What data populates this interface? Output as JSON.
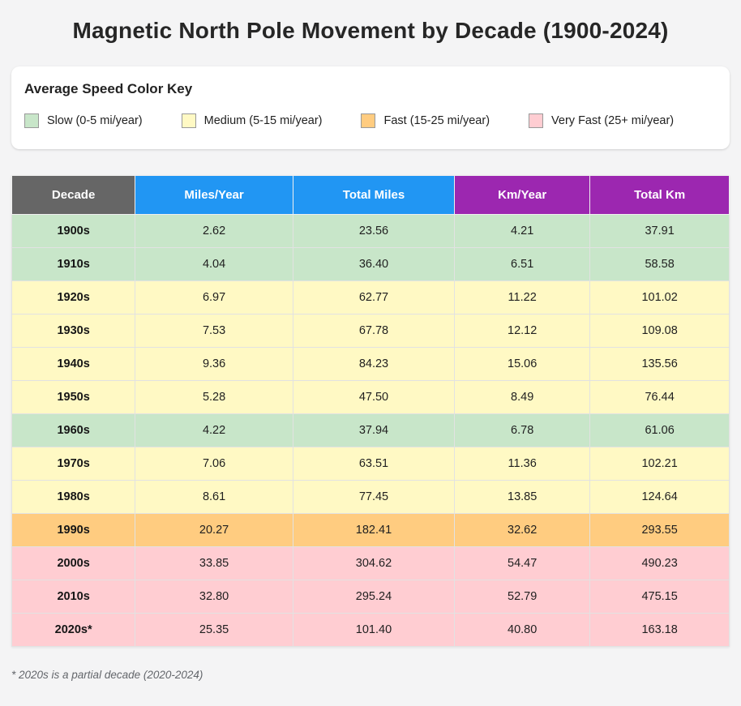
{
  "page": {
    "title": "Magnetic North Pole Movement by Decade (1900-2024)",
    "footnote": "* 2020s is a partial decade (2020-2024)"
  },
  "legend": {
    "heading": "Average Speed Color Key",
    "items": [
      {
        "label": "Slow (0-5 mi/year)",
        "speed": "slow"
      },
      {
        "label": "Medium (5-15 mi/year)",
        "speed": "medium"
      },
      {
        "label": "Fast (15-25 mi/year)",
        "speed": "fast"
      },
      {
        "label": "Very Fast (25+ mi/year)",
        "speed": "very_fast"
      }
    ]
  },
  "colors": {
    "slow": "#c8e6c9",
    "medium": "#fff9c4",
    "fast": "#ffcc80",
    "very_fast": "#ffcdd2",
    "header_decade_bg": "#666666",
    "header_miles_bg": "#2196f3",
    "header_km_bg": "#9c27b0",
    "header_text": "#ffffff"
  },
  "table_header": [
    {
      "label": "Decade",
      "color_key": "header_decade_bg"
    },
    {
      "label": "Miles/Year",
      "color_key": "header_miles_bg"
    },
    {
      "label": "Total Miles",
      "color_key": "header_miles_bg"
    },
    {
      "label": "Km/Year",
      "color_key": "header_km_bg"
    },
    {
      "label": "Total Km",
      "color_key": "header_km_bg"
    }
  ],
  "chart_data": {
    "type": "table",
    "title": "Magnetic North Pole Movement by Decade (1900-2024)",
    "columns": [
      "Decade",
      "Miles/Year",
      "Total Miles",
      "Km/Year",
      "Total Km"
    ],
    "rows": [
      {
        "decade": "1900s",
        "miles_per_year": 2.62,
        "total_miles": 23.56,
        "km_per_year": 4.21,
        "total_km": 37.91,
        "speed": "slow"
      },
      {
        "decade": "1910s",
        "miles_per_year": 4.04,
        "total_miles": 36.4,
        "km_per_year": 6.51,
        "total_km": 58.58,
        "speed": "slow"
      },
      {
        "decade": "1920s",
        "miles_per_year": 6.97,
        "total_miles": 62.77,
        "km_per_year": 11.22,
        "total_km": 101.02,
        "speed": "medium"
      },
      {
        "decade": "1930s",
        "miles_per_year": 7.53,
        "total_miles": 67.78,
        "km_per_year": 12.12,
        "total_km": 109.08,
        "speed": "medium"
      },
      {
        "decade": "1940s",
        "miles_per_year": 9.36,
        "total_miles": 84.23,
        "km_per_year": 15.06,
        "total_km": 135.56,
        "speed": "medium"
      },
      {
        "decade": "1950s",
        "miles_per_year": 5.28,
        "total_miles": 47.5,
        "km_per_year": 8.49,
        "total_km": 76.44,
        "speed": "medium"
      },
      {
        "decade": "1960s",
        "miles_per_year": 4.22,
        "total_miles": 37.94,
        "km_per_year": 6.78,
        "total_km": 61.06,
        "speed": "slow"
      },
      {
        "decade": "1970s",
        "miles_per_year": 7.06,
        "total_miles": 63.51,
        "km_per_year": 11.36,
        "total_km": 102.21,
        "speed": "medium"
      },
      {
        "decade": "1980s",
        "miles_per_year": 8.61,
        "total_miles": 77.45,
        "km_per_year": 13.85,
        "total_km": 124.64,
        "speed": "medium"
      },
      {
        "decade": "1990s",
        "miles_per_year": 20.27,
        "total_miles": 182.41,
        "km_per_year": 32.62,
        "total_km": 293.55,
        "speed": "fast"
      },
      {
        "decade": "2000s",
        "miles_per_year": 33.85,
        "total_miles": 304.62,
        "km_per_year": 54.47,
        "total_km": 490.23,
        "speed": "very_fast"
      },
      {
        "decade": "2010s",
        "miles_per_year": 32.8,
        "total_miles": 295.24,
        "km_per_year": 52.79,
        "total_km": 475.15,
        "speed": "very_fast"
      },
      {
        "decade": "2020s*",
        "miles_per_year": 25.35,
        "total_miles": 101.4,
        "km_per_year": 40.8,
        "total_km": 163.18,
        "speed": "very_fast"
      }
    ],
    "legend": {
      "slow": "Slow (0-5 mi/year)",
      "medium": "Medium (5-15 mi/year)",
      "fast": "Fast (15-25 mi/year)",
      "very_fast": "Very Fast (25+ mi/year)"
    },
    "footnote": "* 2020s is a partial decade (2020-2024)"
  }
}
